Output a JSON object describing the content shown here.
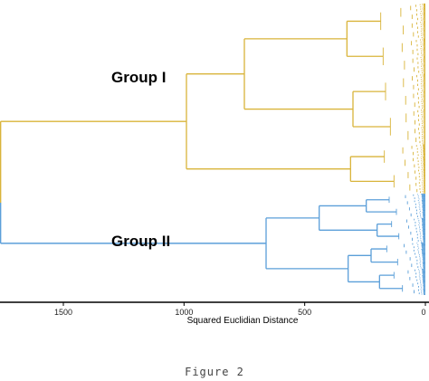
{
  "caption": "Figure 2",
  "chart_data": {
    "type": "dendrogram",
    "orientation": "horizontal, leaves on right",
    "xlabel": "Squared Euclidian Distance",
    "xlim": [
      1780,
      0
    ],
    "xticks": [
      1500,
      1000,
      500,
      0
    ],
    "xtick_labels": [
      "1500",
      "1000",
      "500",
      "0"
    ],
    "root_height": 1760,
    "groups": [
      {
        "label": "Group I",
        "color": "#D9B43A",
        "height": 990,
        "subclusters": [
          {
            "height": 750,
            "children": [
              {
                "height": 325,
                "children": [
                  {
                    "height": 185
                  },
                  {
                    "height": 175
                  }
                ]
              },
              {
                "height": 300,
                "children": [
                  {
                    "height": 165
                  },
                  {
                    "height": 145
                  }
                ]
              }
            ]
          },
          {
            "height": 310,
            "children": [
              {
                "height": 170
              },
              {
                "height": 130
              }
            ]
          }
        ]
      },
      {
        "label": "Group II",
        "color": "#5B9FD9",
        "height": 660,
        "subclusters": [
          {
            "height": 440,
            "children": [
              {
                "height": 245,
                "children": [
                  {
                    "height": 150
                  },
                  {
                    "height": 120
                  }
                ]
              },
              {
                "height": 200,
                "children": [
                  {
                    "height": 140
                  },
                  {
                    "height": 110
                  }
                ]
              }
            ]
          },
          {
            "height": 320,
            "children": [
              {
                "height": 225,
                "children": [
                  {
                    "height": 160
                  },
                  {
                    "height": 115
                  }
                ]
              },
              {
                "height": 190,
                "children": [
                  {
                    "height": 130
                  },
                  {
                    "height": 95
                  }
                ]
              }
            ]
          }
        ]
      }
    ]
  }
}
